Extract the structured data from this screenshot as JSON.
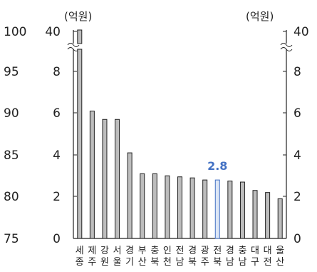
{
  "chart_data": {
    "type": "bar",
    "unit_left": "(억원)",
    "unit_right": "(억원)",
    "outer_left_ticks": [
      "100",
      "95",
      "90",
      "85",
      "80",
      "75"
    ],
    "y_ticks": [
      "40",
      "8",
      "6",
      "4",
      "2",
      "0"
    ],
    "right_ticks": [
      "40",
      "8",
      "6",
      "4",
      "2",
      "0"
    ],
    "ylim": [
      0,
      8
    ],
    "axis_break": true,
    "categories": [
      [
        "세",
        "종"
      ],
      [
        "제",
        "주"
      ],
      [
        "강",
        "원"
      ],
      [
        "서",
        "울"
      ],
      [
        "경",
        "기"
      ],
      [
        "부",
        "산"
      ],
      [
        "충",
        "북"
      ],
      [
        "인",
        "천"
      ],
      [
        "전",
        "남"
      ],
      [
        "경",
        "북"
      ],
      [
        "광",
        "주"
      ],
      [
        "전",
        "북"
      ],
      [
        "경",
        "남"
      ],
      [
        "충",
        "남"
      ],
      [
        "대",
        "구"
      ],
      [
        "대",
        "전"
      ],
      [
        "울",
        "산"
      ]
    ],
    "values": [
      40,
      6.1,
      5.7,
      5.7,
      4.1,
      3.1,
      3.1,
      3.0,
      2.95,
      2.9,
      2.8,
      2.8,
      2.75,
      2.7,
      2.3,
      2.2,
      1.9
    ],
    "highlight_index": 11,
    "highlight_label": "2.8",
    "colors": {
      "bar_fill": "#bdbdbd",
      "bar_stroke": "#222222",
      "highlight_fill": "#dce6f5",
      "highlight_stroke": "#4472c4",
      "label": "#4472c4"
    }
  }
}
